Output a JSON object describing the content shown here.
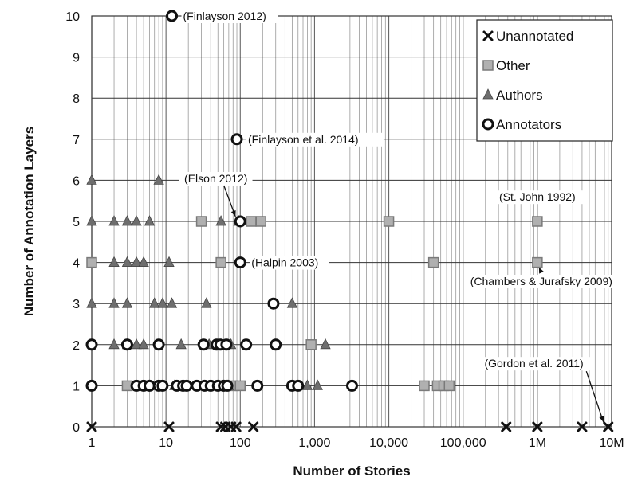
{
  "chart_data": {
    "type": "scatter",
    "title": "",
    "xlabel": "Number of Stories",
    "ylabel": "Number of Annotation Layers",
    "x_scale": "log",
    "xlim": [
      1,
      10000000
    ],
    "ylim": [
      0,
      10
    ],
    "grid": true,
    "legend_position": "top-right",
    "x_tick_labels": [
      {
        "value": 1,
        "label": "1"
      },
      {
        "value": 10,
        "label": "10"
      },
      {
        "value": 100,
        "label": "100"
      },
      {
        "value": 1000,
        "label": "1,000"
      },
      {
        "value": 10000,
        "label": "10,000"
      },
      {
        "value": 100000,
        "label": "100,000"
      },
      {
        "value": 1000000,
        "label": "1M"
      },
      {
        "value": 10000000,
        "label": "10M"
      }
    ],
    "y_ticks": [
      0,
      1,
      2,
      3,
      4,
      5,
      6,
      7,
      8,
      9,
      10
    ],
    "series": [
      {
        "name": "Unannotated",
        "marker": "x",
        "color": "#111111",
        "points": [
          [
            1,
            0
          ],
          [
            11,
            0
          ],
          [
            55,
            0
          ],
          [
            63,
            0
          ],
          [
            75,
            0
          ],
          [
            88,
            0
          ],
          [
            150,
            0
          ],
          [
            380000,
            0
          ],
          [
            1000000,
            0
          ],
          [
            4000000,
            0
          ],
          [
            9000000,
            0
          ]
        ]
      },
      {
        "name": "Other",
        "marker": "square",
        "color": "#9a9a9a",
        "points": [
          [
            1,
            4
          ],
          [
            3,
            1
          ],
          [
            30,
            5
          ],
          [
            55,
            4
          ],
          [
            80,
            1
          ],
          [
            100,
            1
          ],
          [
            140,
            5
          ],
          [
            190,
            5
          ],
          [
            900,
            2
          ],
          [
            10000,
            5
          ],
          [
            30000,
            1
          ],
          [
            40000,
            4
          ],
          [
            45000,
            1
          ],
          [
            55000,
            1
          ],
          [
            65000,
            1
          ],
          [
            1000000,
            5
          ],
          [
            1000000,
            4
          ]
        ]
      },
      {
        "name": "Authors",
        "marker": "triangle",
        "color": "#777777",
        "points": [
          [
            1,
            6
          ],
          [
            1,
            5
          ],
          [
            1,
            3
          ],
          [
            2,
            5
          ],
          [
            2,
            4
          ],
          [
            2,
            3
          ],
          [
            2,
            2
          ],
          [
            3,
            5
          ],
          [
            3,
            4
          ],
          [
            3,
            3
          ],
          [
            3,
            2
          ],
          [
            4,
            5
          ],
          [
            4,
            4
          ],
          [
            4,
            2
          ],
          [
            5,
            4
          ],
          [
            5,
            2
          ],
          [
            6,
            5
          ],
          [
            6,
            1
          ],
          [
            7,
            3
          ],
          [
            8,
            6
          ],
          [
            9,
            3
          ],
          [
            11,
            4
          ],
          [
            12,
            3
          ],
          [
            13,
            1
          ],
          [
            16,
            2
          ],
          [
            35,
            3
          ],
          [
            38,
            2
          ],
          [
            50,
            2
          ],
          [
            55,
            5
          ],
          [
            70,
            1
          ],
          [
            75,
            2
          ],
          [
            95,
            5
          ],
          [
            500,
            3
          ],
          [
            800,
            1
          ],
          [
            1100,
            1
          ],
          [
            1400,
            2
          ]
        ]
      },
      {
        "name": "Annotators",
        "marker": "circle",
        "color": "#111111",
        "points": [
          [
            1,
            2
          ],
          [
            1,
            1
          ],
          [
            3,
            2
          ],
          [
            4,
            1
          ],
          [
            5,
            1
          ],
          [
            6,
            1
          ],
          [
            8,
            2
          ],
          [
            8,
            1
          ],
          [
            9,
            1
          ],
          [
            12,
            10
          ],
          [
            14,
            1
          ],
          [
            17,
            1
          ],
          [
            19,
            1
          ],
          [
            26,
            1
          ],
          [
            32,
            2
          ],
          [
            33,
            1
          ],
          [
            40,
            1
          ],
          [
            48,
            2
          ],
          [
            50,
            1
          ],
          [
            54,
            2
          ],
          [
            60,
            1
          ],
          [
            65,
            2
          ],
          [
            67,
            1
          ],
          [
            90,
            7
          ],
          [
            100,
            5
          ],
          [
            100,
            4
          ],
          [
            120,
            2
          ],
          [
            170,
            1
          ],
          [
            280,
            3
          ],
          [
            300,
            2
          ],
          [
            500,
            1
          ],
          [
            600,
            1
          ],
          [
            3200,
            1
          ]
        ]
      }
    ],
    "annotations": [
      {
        "text": "(Finlayson 2012)",
        "x": 12,
        "y": 10
      },
      {
        "text": "(Finlayson et al. 2014)",
        "x": 90,
        "y": 7
      },
      {
        "text": "(Elson 2012)",
        "x": 100,
        "y": 5
      },
      {
        "text": "(Halpin 2003)",
        "x": 100,
        "y": 4
      },
      {
        "text": "(St. John 1992)",
        "x": 1000000,
        "y": 5
      },
      {
        "text": "(Chambers & Jurafsky 2009)",
        "x": 1000000,
        "y": 4
      },
      {
        "text": "(Gordon et al. 2011)",
        "x": 9000000,
        "y": 0
      }
    ]
  }
}
